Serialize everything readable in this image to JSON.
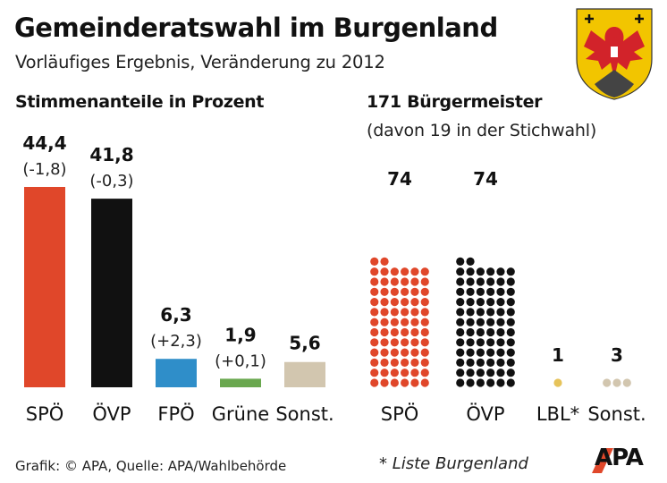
{
  "header": {
    "title": "Gemeinderatswahl im Burgenland",
    "subtitle": "Vorläufiges Ergebnis, Veränderung zu 2012"
  },
  "chart_data": [
    {
      "type": "bar",
      "title": "Stimmenanteile in Prozent",
      "categories": [
        "SPÖ",
        "ÖVP",
        "FPÖ",
        "Grüne",
        "Sonst."
      ],
      "values": [
        44.4,
        41.8,
        6.3,
        1.9,
        5.6
      ],
      "value_labels": [
        "44,4",
        "41,8",
        "6,3",
        "1,9",
        "5,6"
      ],
      "change_labels": [
        "(-1,8)",
        "(-0,3)",
        "(+2,3)",
        "(+0,1)",
        ""
      ],
      "colors": [
        "#e0472a",
        "#111111",
        "#2f8ec9",
        "#6aa84f",
        "#d2c6af"
      ],
      "ylim": [
        0,
        44.4
      ]
    },
    {
      "type": "dot",
      "title": "171 Bürgermeister",
      "subtitle": "(davon 19 in der Stichwahl)",
      "categories": [
        "SPÖ",
        "ÖVP",
        "LBL*",
        "Sonst."
      ],
      "values": [
        74,
        74,
        1,
        3
      ],
      "value_labels": [
        "74",
        "74",
        "1",
        "3"
      ],
      "colors": [
        "#e0472a",
        "#111111",
        "#e6c35a",
        "#d2c6af"
      ]
    }
  ],
  "footer": {
    "source": "Grafik: © APA, Quelle: APA/Wahlbehörde",
    "note": "* Liste Burgenland",
    "logo_text": "APA"
  },
  "colors": {
    "accent_red": "#e0472a",
    "crest_yellow": "#f2c500",
    "crest_red": "#d2232a"
  }
}
